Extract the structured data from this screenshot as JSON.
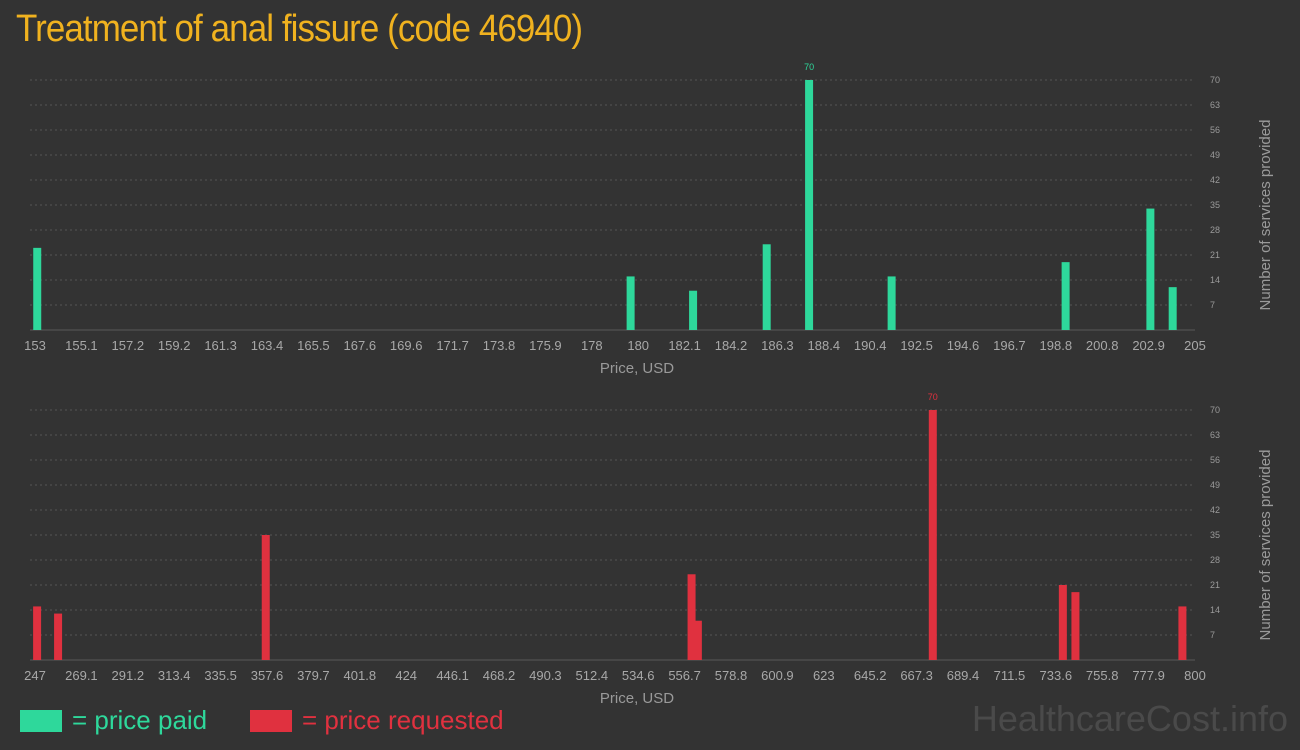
{
  "title": "Treatment of anal fissure (code 46940)",
  "colors": {
    "paid": "#2ed89b",
    "requested": "#e0313f",
    "title": "#f0b21f"
  },
  "legend": {
    "paid": "= price paid",
    "requested": "= price requested"
  },
  "watermark": "HealthcareCost.info",
  "chart_data": [
    {
      "type": "bar",
      "xlabel": "Price, USD",
      "ylabel": "Number of services provided",
      "xlim": [
        153,
        205
      ],
      "ylim": [
        0,
        70
      ],
      "yticks": [
        7,
        14,
        21,
        28,
        35,
        42,
        49,
        56,
        63,
        70
      ],
      "xticks": [
        "153",
        "155.1",
        "157.2",
        "159.2",
        "161.3",
        "163.4",
        "165.5",
        "167.6",
        "169.6",
        "171.7",
        "173.8",
        "175.9",
        "178",
        "180",
        "182.1",
        "184.2",
        "186.3",
        "188.4",
        "190.4",
        "192.5",
        "194.6",
        "196.7",
        "198.8",
        "200.8",
        "202.9",
        "205"
      ],
      "max_label": "70",
      "series": [
        {
          "x": [
            153.1,
            179.7,
            182.5,
            185.8,
            187.7,
            191.4,
            199.2,
            203.0,
            204.0
          ],
          "values": [
            23,
            15,
            11,
            24,
            70,
            15,
            19,
            34,
            12
          ]
        }
      ]
    },
    {
      "type": "bar",
      "xlabel": "Price, USD",
      "ylabel": "Number of services provided",
      "xlim": [
        247,
        800
      ],
      "ylim": [
        0,
        70
      ],
      "yticks": [
        7,
        14,
        21,
        28,
        35,
        42,
        49,
        56,
        63,
        70
      ],
      "xticks": [
        "247",
        "269.1",
        "291.2",
        "313.4",
        "335.5",
        "357.6",
        "379.7",
        "401.8",
        "424",
        "446.1",
        "468.2",
        "490.3",
        "512.4",
        "534.6",
        "556.7",
        "578.8",
        "600.9",
        "623",
        "645.2",
        "667.3",
        "689.4",
        "711.5",
        "733.6",
        "755.8",
        "777.9",
        "800"
      ],
      "max_label": "70",
      "series": [
        {
          "x": [
            248,
            258,
            357,
            560,
            563,
            675,
            737,
            743,
            794
          ],
          "values": [
            15,
            13,
            35,
            24,
            11,
            70,
            21,
            19,
            15
          ]
        }
      ]
    }
  ]
}
